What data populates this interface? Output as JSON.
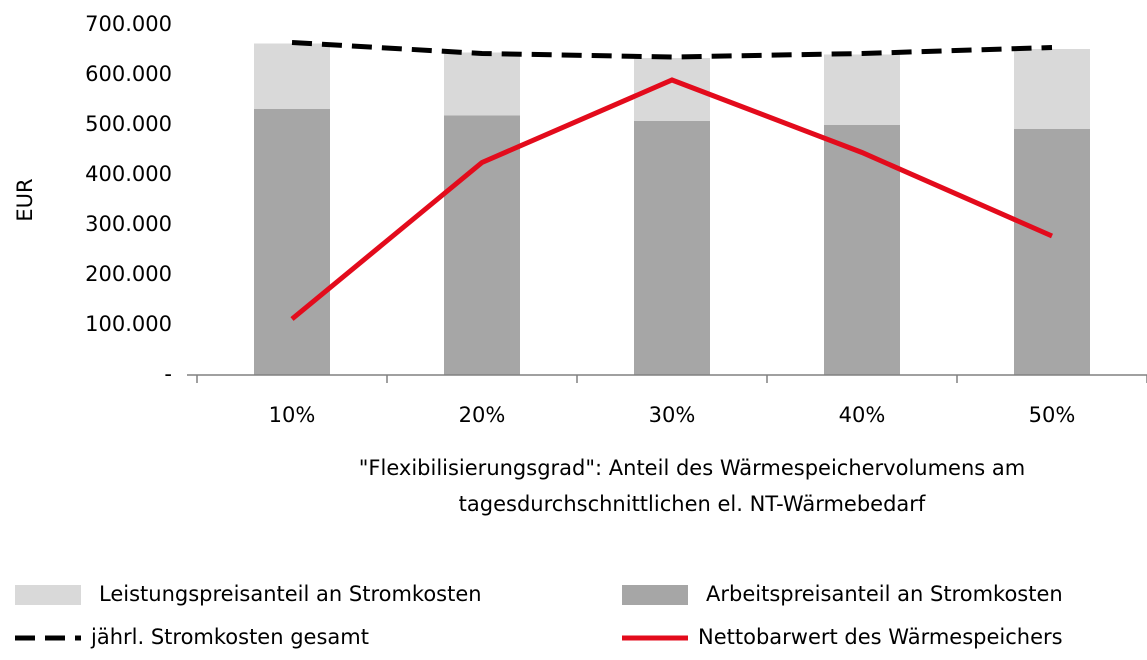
{
  "chart_data": {
    "type": "bar",
    "stacked": true,
    "categories": [
      "10%",
      "20%",
      "30%",
      "40%",
      "50%"
    ],
    "y_label": "EUR",
    "x_label": "\"Flexibilisierungsgrad\": Anteil des Wärmespeichervolumens am tagesdurchschnittlichen el. NT-Wärmebedarf",
    "ylim": [
      0,
      700000
    ],
    "yticks": [
      {
        "value": 0,
        "label": "-"
      },
      {
        "value": 100000,
        "label": "100.000"
      },
      {
        "value": 200000,
        "label": "200.000"
      },
      {
        "value": 300000,
        "label": "300.000"
      },
      {
        "value": 400000,
        "label": "400.000"
      },
      {
        "value": 500000,
        "label": "500.000"
      },
      {
        "value": 600000,
        "label": "600.000"
      },
      {
        "value": 700000,
        "label": "700.000"
      }
    ],
    "grid": false,
    "legend": "bottom",
    "series": [
      {
        "name": "Arbeitspreisanteil an Stromkosten",
        "type": "bar",
        "color": "#a6a6a6",
        "values": [
          532000,
          519000,
          508000,
          500000,
          492000
        ]
      },
      {
        "name": "Leistungspreisanteil an Stromkosten",
        "type": "bar",
        "color": "#d9d9d9",
        "values": [
          131000,
          126000,
          126000,
          141000,
          160000
        ]
      },
      {
        "name": "jährl. Stromkosten gesamt",
        "type": "line",
        "dashed": true,
        "color": "#000000",
        "values": [
          665000,
          643000,
          636000,
          643000,
          655000
        ]
      },
      {
        "name": "Nettobarwert des Wärmespeichers",
        "type": "line",
        "dashed": false,
        "color": "#e30b1c",
        "values": [
          112000,
          425000,
          590000,
          445000,
          278000
        ]
      }
    ]
  }
}
